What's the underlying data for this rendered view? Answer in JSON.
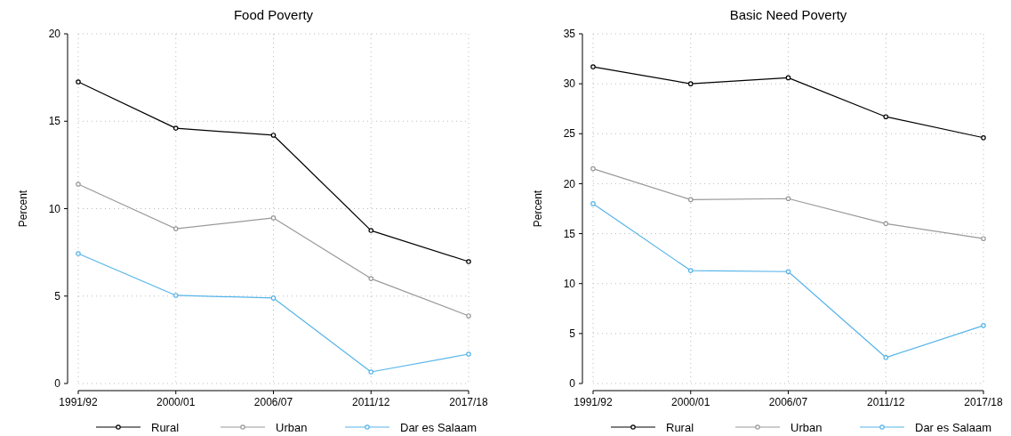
{
  "chart_data": [
    {
      "type": "line",
      "title": "Food Poverty",
      "ylabel": "Percent",
      "categories": [
        "1991/92",
        "2000/01",
        "2006/07",
        "2011/12",
        "2017/18"
      ],
      "ylim": [
        0,
        20
      ],
      "yticks": [
        0,
        5,
        10,
        15,
        20
      ],
      "grid": true,
      "legend": "bottom",
      "marker": "circle",
      "series": [
        {
          "name": "Rural",
          "color": "#000000",
          "values": [
            17.25,
            14.6,
            14.2,
            8.75,
            6.97
          ]
        },
        {
          "name": "Urban",
          "color": "#999999",
          "values": [
            11.4,
            8.85,
            9.47,
            6.0,
            3.87
          ]
        },
        {
          "name": "Dar es Salaam",
          "color": "#56b4e9",
          "values": [
            7.43,
            5.04,
            4.89,
            0.66,
            1.68
          ]
        }
      ]
    },
    {
      "type": "line",
      "title": "Basic Need Poverty",
      "ylabel": "Percent",
      "categories": [
        "1991/92",
        "2000/01",
        "2006/07",
        "2011/12",
        "2017/18"
      ],
      "ylim": [
        0,
        35
      ],
      "yticks": [
        0,
        5,
        10,
        15,
        20,
        25,
        30,
        35
      ],
      "grid": true,
      "legend": "bottom",
      "marker": "circle",
      "series": [
        {
          "name": "Rural",
          "color": "#000000",
          "values": [
            31.7,
            30.0,
            30.6,
            26.7,
            24.6
          ]
        },
        {
          "name": "Urban",
          "color": "#999999",
          "values": [
            21.5,
            18.4,
            18.5,
            16.0,
            14.5
          ]
        },
        {
          "name": "Dar es Salaam",
          "color": "#56b4e9",
          "values": [
            18.0,
            11.3,
            11.2,
            2.6,
            5.8
          ]
        }
      ]
    }
  ]
}
